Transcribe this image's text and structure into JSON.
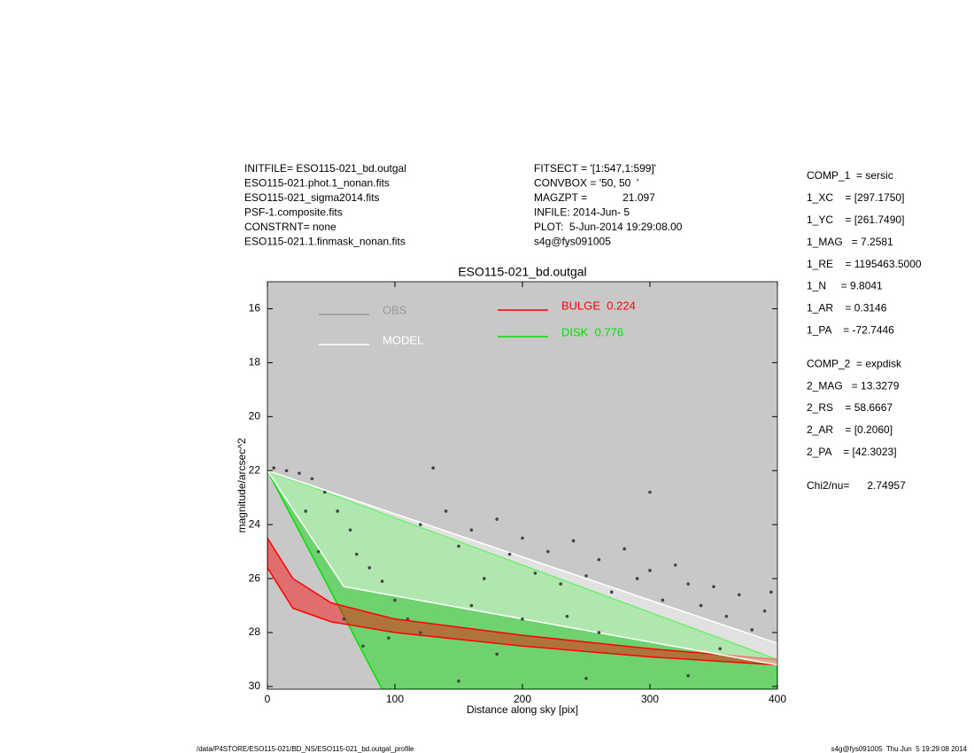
{
  "header": {
    "left": [
      "INITFILE= ESO115-021_bd.outgal",
      "ESO115-021.phot.1_nonan.fits",
      "ESO115-021_sigma2014.fits",
      "PSF-1.composite.fits",
      "CONSTRNT= none",
      "ESO115-021.1.finmask_nonan.fits"
    ],
    "middle": [
      "FITSECT = '[1:547,1:599]'",
      "CONVBOX = '50, 50  '",
      "MAGZPT =            21.097",
      "INFILE: 2014-Jun- 5",
      "PLOT:  5-Jun-2014 19:29:08.00",
      "s4g@fys091005"
    ]
  },
  "params": [
    [
      "COMP_1  = sersic",
      "1_XC    = [297.1750]",
      "1_YC    = [261.7490]",
      "1_MAG   = 7.2581",
      "1_RE    = 1195463.5000",
      "1_N     = 9.8041",
      "1_AR    = 0.3146",
      "1_PA    = -72.7446"
    ],
    [
      "COMP_2  = expdisk",
      "2_MAG   = 13.3279",
      "2_RS    = 58.6667",
      "2_AR    = [0.2060]",
      "2_PA    = [42.3023]"
    ],
    [
      "Chi2/nu=      2.74957"
    ]
  ],
  "footer": {
    "left": "/data/P4STORE/ESO115-021/BD_NS/ESO115-021_bd.outgal_profile",
    "right": "s4g@fys091005  Thu Jun  5 19:29:08 2014"
  },
  "chart_data": {
    "type": "scatter",
    "title": "ESO115-021_bd.outgal",
    "xlabel": "Distance along sky [pix]",
    "ylabel": "magnitude/arcsec^2",
    "xlim": [
      0,
      400
    ],
    "xticks": [
      0,
      100,
      200,
      300,
      400
    ],
    "ylim": [
      15,
      30.1
    ],
    "yticks": [
      16,
      18,
      20,
      22,
      24,
      26,
      28,
      30
    ],
    "y_inverted": true,
    "background": "#c8c8c8",
    "series": [
      {
        "name": "OBS",
        "color": "#999999",
        "marker_color": "#444444",
        "x": [
          5,
          15,
          25,
          35,
          45,
          55,
          65,
          70,
          80,
          90,
          100,
          110,
          130,
          120,
          140,
          150,
          160,
          170,
          180,
          190,
          200,
          210,
          220,
          230,
          240,
          250,
          260,
          270,
          280,
          290,
          300,
          310,
          320,
          330,
          340,
          350,
          360,
          370,
          380,
          390,
          300,
          60,
          75,
          95,
          150,
          250,
          330,
          200,
          180,
          120,
          260,
          40,
          30,
          355,
          395,
          235,
          160
        ],
        "values": [
          21.9,
          22.0,
          22.1,
          22.3,
          22.8,
          23.5,
          24.2,
          25.1,
          25.6,
          26.1,
          26.8,
          27.5,
          21.9,
          24.0,
          23.5,
          24.8,
          24.2,
          26.0,
          23.8,
          25.1,
          24.5,
          25.8,
          25.0,
          26.2,
          24.6,
          25.9,
          25.3,
          26.5,
          24.9,
          26.0,
          25.7,
          26.8,
          25.5,
          26.2,
          27.0,
          26.3,
          27.4,
          26.6,
          27.9,
          27.2,
          22.8,
          27.5,
          28.5,
          28.2,
          29.8,
          29.7,
          29.6,
          27.5,
          28.8,
          28.0,
          28.0,
          25.0,
          23.5,
          28.6,
          26.5,
          27.4,
          27.0
        ]
      },
      {
        "name": "MODEL",
        "color": "#ffffff",
        "x": [
          0,
          400,
          400,
          60
        ],
        "values": [
          22.0,
          28.4,
          29.2,
          26.3
        ]
      },
      {
        "name": "BULGE  0.224",
        "color": "#ff0000",
        "x": [
          0,
          20,
          50,
          100,
          200,
          300,
          400,
          400,
          300,
          200,
          100,
          50,
          20,
          0
        ],
        "values": [
          24.5,
          26.0,
          26.9,
          27.5,
          28.1,
          28.6,
          29.0,
          29.2,
          28.9,
          28.5,
          28.0,
          27.6,
          27.1,
          25.6
        ]
      },
      {
        "name": "DISK  0.776",
        "color": "#00e000",
        "x": [
          0,
          400,
          400,
          90
        ],
        "values": [
          22.0,
          29.0,
          30.1,
          30.1
        ]
      }
    ]
  }
}
